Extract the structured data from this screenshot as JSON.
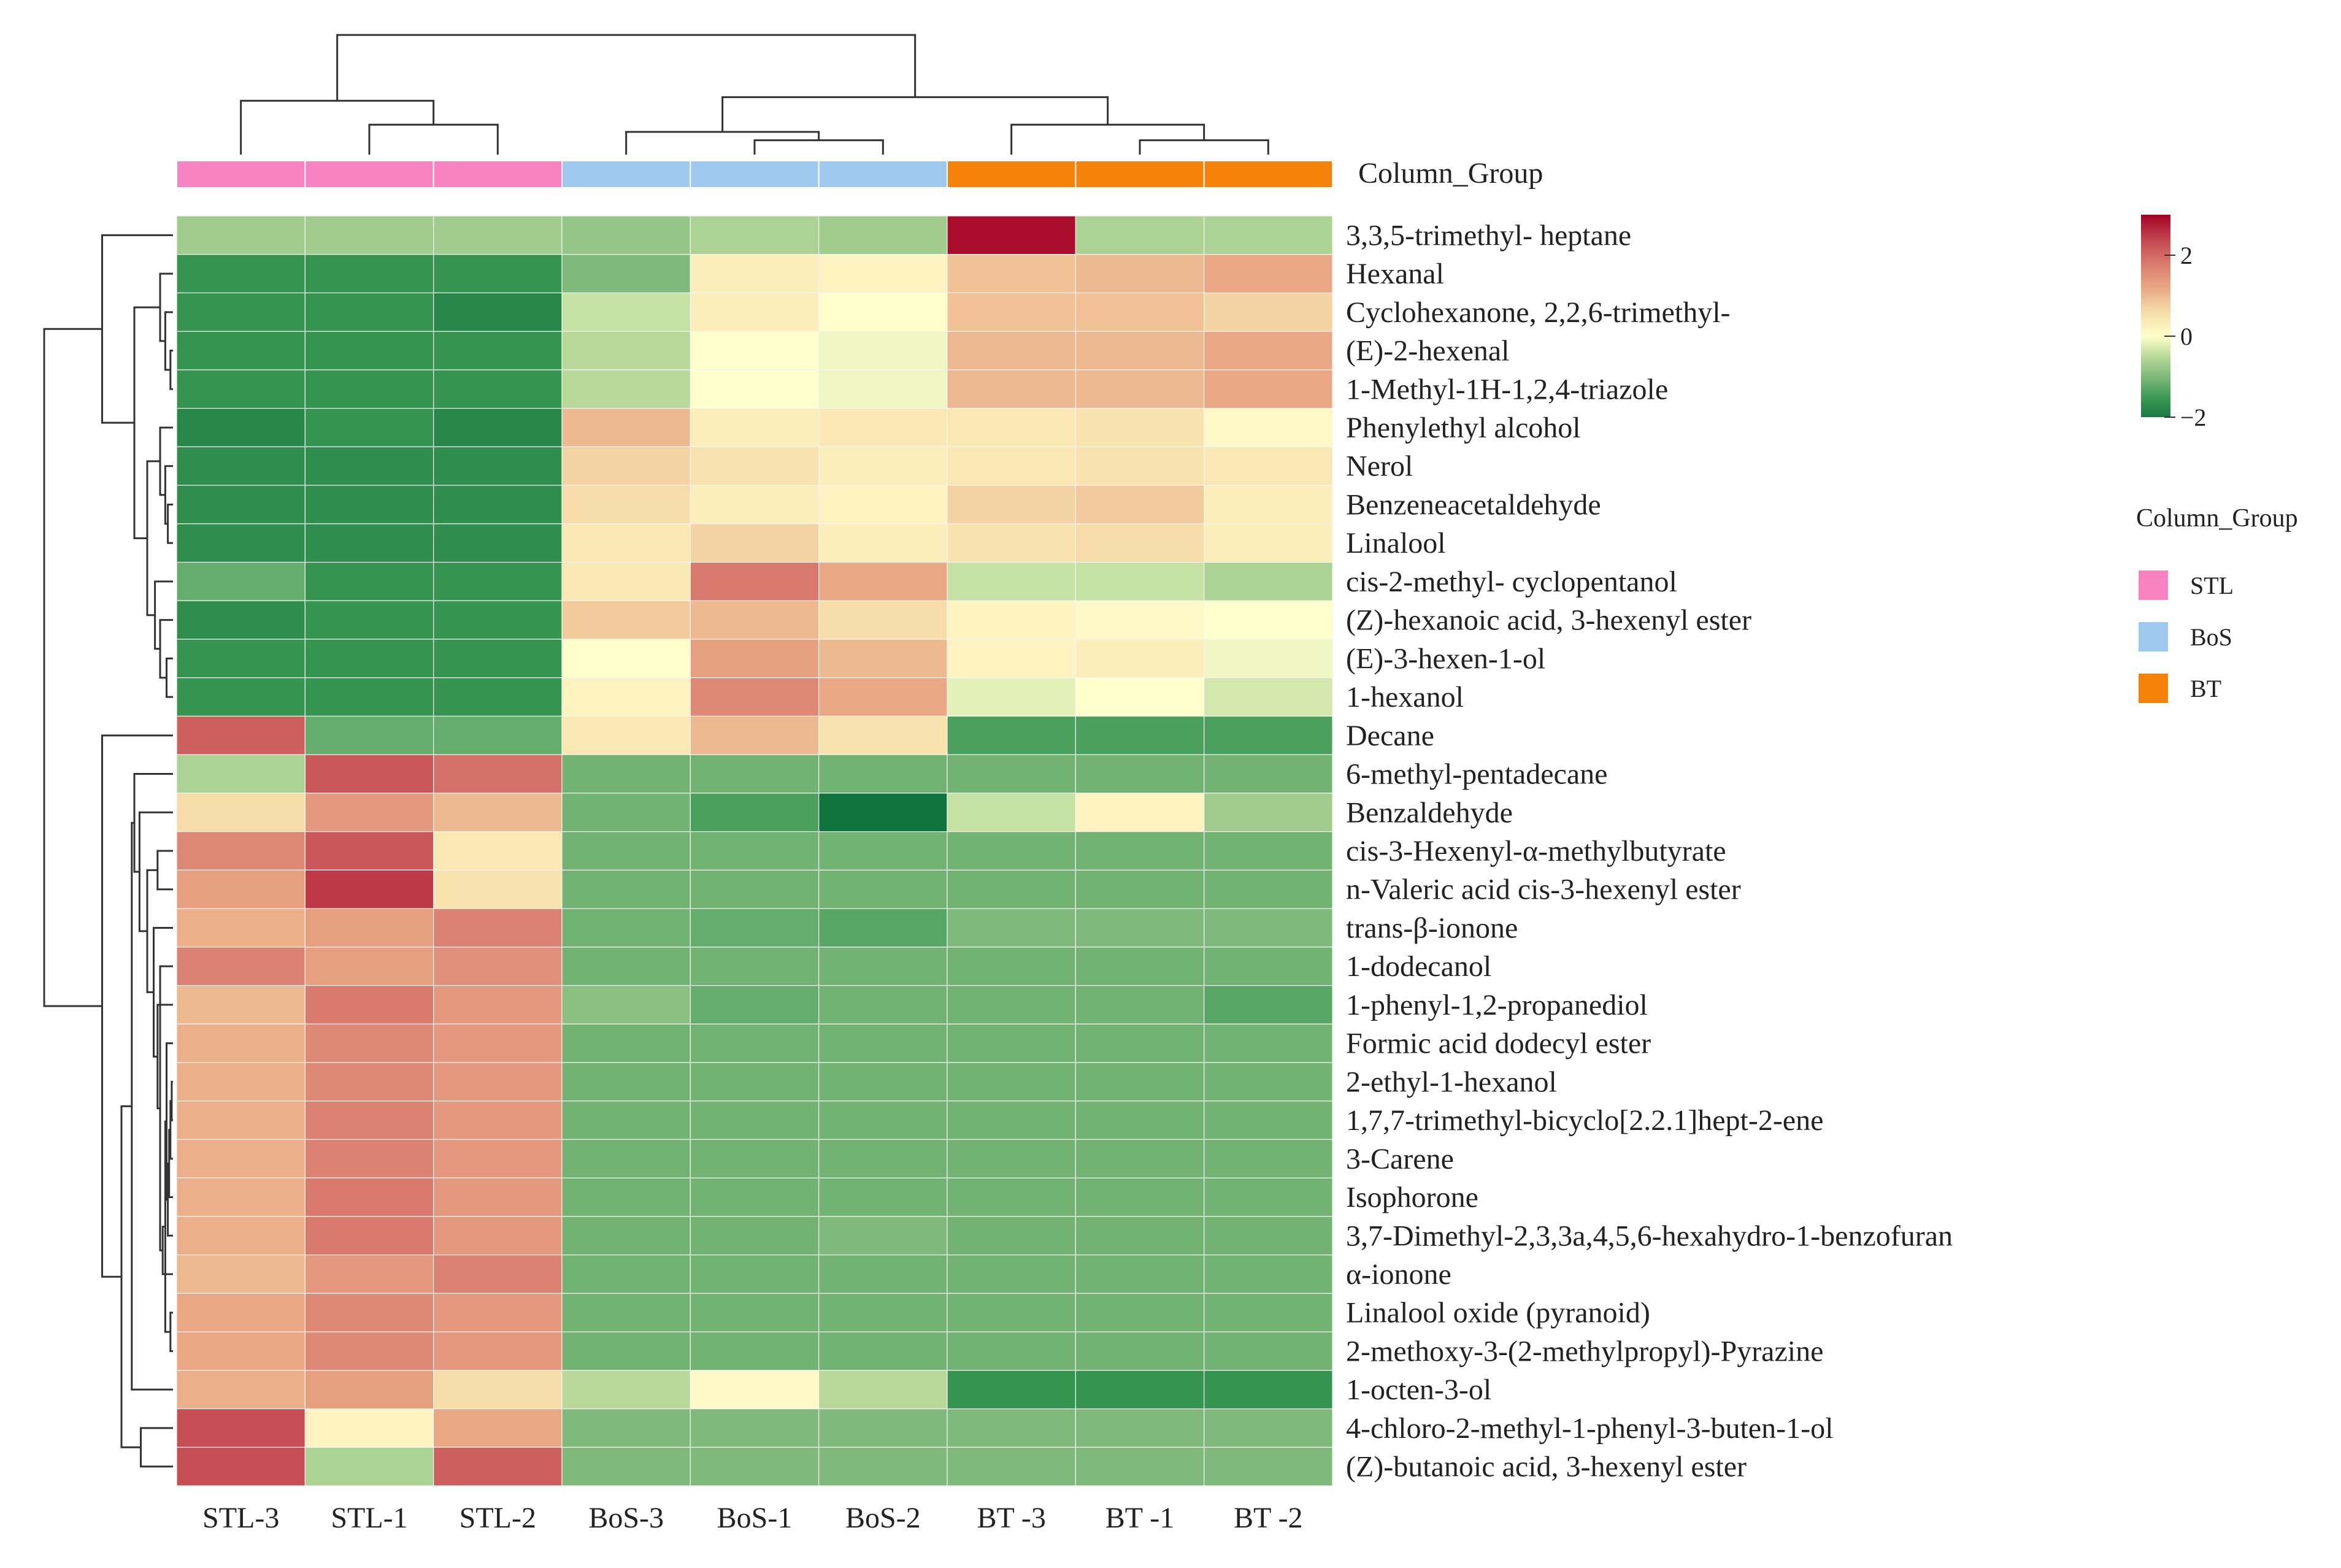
{
  "chart_data": {
    "type": "heatmap",
    "title": "",
    "columns": [
      "STL-3",
      "STL-1",
      "STL-2",
      "BoS-3",
      "BoS-1",
      "BoS-2",
      "BT -3",
      "BT -1",
      "BT -2"
    ],
    "column_groups": [
      "STL",
      "STL",
      "STL",
      "BoS",
      "BoS",
      "BoS",
      "BT",
      "BT",
      "BT"
    ],
    "column_group_title": "Column_Group",
    "groups": [
      {
        "name": "STL",
        "color": "#F783C2"
      },
      {
        "name": "BoS",
        "color": "#9FC8EF"
      },
      {
        "name": "BT",
        "color": "#F5820A"
      }
    ],
    "rows": [
      "3,3,5-trimethyl- heptane",
      "Hexanal",
      "Cyclohexanone, 2,2,6-trimethyl-",
      "(E)-2-hexenal",
      "1-Methyl-1H-1,2,4-triazole",
      "Phenylethyl alcohol",
      "Nerol",
      "Benzeneacetaldehyde",
      "Linalool",
      "cis-2-methyl- cyclopentanol",
      "(Z)-hexanoic acid, 3-hexenyl ester",
      "(E)-3-hexen-1-ol",
      "1-hexanol",
      "Decane",
      "6-methyl-pentadecane",
      "Benzaldehyde",
      "cis-3-Hexenyl-α-methylbutyrate",
      "n-Valeric acid cis-3-hexenyl ester",
      "trans-β-ionone",
      "1-dodecanol",
      "1-phenyl-1,2-propanediol",
      "Formic acid dodecyl ester",
      "2-ethyl-1-hexanol",
      "1,7,7-trimethyl-bicyclo[2.2.1]hept-2-ene",
      "3-Carene",
      "Isophorone",
      "3,7-Dimethyl-2,3,3a,4,5,6-hexahydro-1-benzofuran",
      "α-ionone",
      "Linalool oxide (pyranoid)",
      "2-methoxy-3-(2-methylpropyl)-Pyrazine",
      "1-octen-3-ol",
      "4-chloro-2-methyl-1-phenyl-3-buten-1-ol",
      "(Z)-butanoic acid, 3-hexenyl ester"
    ],
    "values": [
      [
        -0.7,
        -0.7,
        -0.7,
        -0.8,
        -0.6,
        -0.7,
        2.9,
        -0.6,
        -0.6
      ],
      [
        -1.6,
        -1.6,
        -1.6,
        -1.0,
        0.3,
        0.2,
        0.9,
        1.0,
        1.2
      ],
      [
        -1.6,
        -1.6,
        -1.8,
        -0.4,
        0.3,
        0.0,
        0.9,
        0.9,
        0.7
      ],
      [
        -1.6,
        -1.6,
        -1.6,
        -0.5,
        0.0,
        -0.1,
        1.0,
        1.0,
        1.2
      ],
      [
        -1.6,
        -1.6,
        -1.6,
        -0.5,
        0.0,
        -0.1,
        1.0,
        1.0,
        1.2
      ],
      [
        -1.8,
        -1.6,
        -1.8,
        1.0,
        0.3,
        0.4,
        0.4,
        0.5,
        0.1
      ],
      [
        -1.7,
        -1.7,
        -1.7,
        0.7,
        0.5,
        0.3,
        0.4,
        0.5,
        0.4
      ],
      [
        -1.7,
        -1.7,
        -1.7,
        0.6,
        0.3,
        0.2,
        0.7,
        0.8,
        0.3
      ],
      [
        -1.7,
        -1.7,
        -1.7,
        0.4,
        0.7,
        0.3,
        0.5,
        0.6,
        0.3
      ],
      [
        -1.2,
        -1.6,
        -1.6,
        0.4,
        1.8,
        1.2,
        -0.4,
        -0.4,
        -0.6
      ],
      [
        -1.7,
        -1.6,
        -1.6,
        0.8,
        1.0,
        0.6,
        0.2,
        0.1,
        0.0
      ],
      [
        -1.6,
        -1.6,
        -1.6,
        0.0,
        1.3,
        1.0,
        0.2,
        0.3,
        -0.1
      ],
      [
        -1.6,
        -1.6,
        -1.6,
        0.2,
        1.6,
        1.2,
        -0.2,
        0.0,
        -0.3
      ],
      [
        2.1,
        -1.2,
        -1.2,
        0.4,
        1.0,
        0.5,
        -1.4,
        -1.4,
        -1.4
      ],
      [
        -0.6,
        2.2,
        1.9,
        -1.1,
        -1.1,
        -1.1,
        -1.1,
        -1.1,
        -1.1
      ],
      [
        0.6,
        1.4,
        1.0,
        -1.1,
        -1.4,
        -2.1,
        -0.4,
        0.2,
        -0.7
      ],
      [
        1.6,
        2.2,
        0.4,
        -1.1,
        -1.1,
        -1.1,
        -1.1,
        -1.1,
        -1.1
      ],
      [
        1.3,
        2.5,
        0.5,
        -1.1,
        -1.1,
        -1.1,
        -1.1,
        -1.1,
        -1.1
      ],
      [
        1.1,
        1.3,
        1.7,
        -1.1,
        -1.2,
        -1.3,
        -1.0,
        -1.0,
        -1.0
      ],
      [
        1.7,
        1.3,
        1.5,
        -1.1,
        -1.1,
        -1.1,
        -1.1,
        -1.1,
        -1.1
      ],
      [
        1.0,
        1.8,
        1.4,
        -0.9,
        -1.2,
        -1.1,
        -1.1,
        -1.1,
        -1.3
      ],
      [
        1.1,
        1.6,
        1.4,
        -1.1,
        -1.1,
        -1.1,
        -1.1,
        -1.1,
        -1.1
      ],
      [
        1.1,
        1.6,
        1.4,
        -1.1,
        -1.1,
        -1.1,
        -1.1,
        -1.1,
        -1.1
      ],
      [
        1.1,
        1.7,
        1.4,
        -1.1,
        -1.1,
        -1.1,
        -1.1,
        -1.1,
        -1.1
      ],
      [
        1.1,
        1.7,
        1.4,
        -1.1,
        -1.1,
        -1.1,
        -1.1,
        -1.1,
        -1.1
      ],
      [
        1.1,
        1.8,
        1.4,
        -1.1,
        -1.1,
        -1.1,
        -1.1,
        -1.1,
        -1.1
      ],
      [
        1.1,
        1.8,
        1.4,
        -1.1,
        -1.1,
        -1.0,
        -1.1,
        -1.1,
        -1.1
      ],
      [
        1.0,
        1.4,
        1.7,
        -1.1,
        -1.1,
        -1.1,
        -1.1,
        -1.1,
        -1.1
      ],
      [
        1.2,
        1.6,
        1.4,
        -1.1,
        -1.1,
        -1.1,
        -1.1,
        -1.1,
        -1.1
      ],
      [
        1.2,
        1.6,
        1.4,
        -1.1,
        -1.1,
        -1.1,
        -1.1,
        -1.1,
        -1.1
      ],
      [
        1.1,
        1.3,
        0.6,
        -0.5,
        0.1,
        -0.5,
        -1.6,
        -1.6,
        -1.6
      ],
      [
        2.3,
        0.2,
        1.2,
        -1.0,
        -1.0,
        -1.0,
        -1.0,
        -1.0,
        -1.0
      ],
      [
        2.3,
        -0.6,
        2.1,
        -1.0,
        -1.0,
        -1.0,
        -1.0,
        -1.0,
        -1.0
      ]
    ],
    "color_scale": {
      "min": -2,
      "max": 3,
      "stops": [
        {
          "value": -2.3,
          "color": "#006837"
        },
        {
          "value": -1.5,
          "color": "#3E9A55"
        },
        {
          "value": -1.0,
          "color": "#7FB97B"
        },
        {
          "value": -0.5,
          "color": "#B8D99A"
        },
        {
          "value": 0.0,
          "color": "#FFFFCC"
        },
        {
          "value": 0.6,
          "color": "#F6DCA8"
        },
        {
          "value": 1.2,
          "color": "#E9A784"
        },
        {
          "value": 1.8,
          "color": "#D97A6E"
        },
        {
          "value": 2.4,
          "color": "#C2454F"
        },
        {
          "value": 3.0,
          "color": "#A50026"
        }
      ],
      "ticks": [
        "2",
        "0",
        "−2"
      ],
      "tick_values": [
        2,
        0,
        -2
      ]
    },
    "column_dendrogram": [
      {
        "a": 1,
        "b": 2,
        "h": 0.25
      },
      {
        "a": 0,
        "b": 9,
        "h": 0.45
      },
      {
        "a": 4,
        "b": 5,
        "h": 0.12
      },
      {
        "a": 3,
        "b": 11,
        "h": 0.19
      },
      {
        "a": 7,
        "b": 8,
        "h": 0.12
      },
      {
        "a": 6,
        "b": 13,
        "h": 0.25
      },
      {
        "a": 12,
        "b": 14,
        "h": 0.48
      },
      {
        "a": 10,
        "b": 15,
        "h": 1.0
      }
    ],
    "row_dendrogram": [
      {
        "a": 3,
        "b": 4,
        "h": 0.02
      },
      {
        "a": 2,
        "b": 33,
        "h": 0.06
      },
      {
        "a": 1,
        "b": 34,
        "h": 0.1
      },
      {
        "a": 7,
        "b": 8,
        "h": 0.04
      },
      {
        "a": 6,
        "b": 36,
        "h": 0.06
      },
      {
        "a": 5,
        "b": 37,
        "h": 0.1
      },
      {
        "a": 11,
        "b": 12,
        "h": 0.05
      },
      {
        "a": 10,
        "b": 39,
        "h": 0.1
      },
      {
        "a": 9,
        "b": 40,
        "h": 0.14
      },
      {
        "a": 38,
        "b": 41,
        "h": 0.2
      },
      {
        "a": 35,
        "b": 42,
        "h": 0.3
      },
      {
        "a": 0,
        "b": 43,
        "h": 0.55
      },
      {
        "a": 22,
        "b": 23,
        "h": 0.01
      },
      {
        "a": 24,
        "b": 45,
        "h": 0.02
      },
      {
        "a": 25,
        "b": 46,
        "h": 0.03
      },
      {
        "a": 26,
        "b": 47,
        "h": 0.04
      },
      {
        "a": 21,
        "b": 48,
        "h": 0.05
      },
      {
        "a": 28,
        "b": 29,
        "h": 0.02
      },
      {
        "a": 49,
        "b": 50,
        "h": 0.06
      },
      {
        "a": 27,
        "b": 51,
        "h": 0.08
      },
      {
        "a": 19,
        "b": 52,
        "h": 0.1
      },
      {
        "a": 20,
        "b": 53,
        "h": 0.12
      },
      {
        "a": 18,
        "b": 54,
        "h": 0.15
      },
      {
        "a": 16,
        "b": 17,
        "h": 0.12
      },
      {
        "a": 55,
        "b": 56,
        "h": 0.2
      },
      {
        "a": 15,
        "b": 57,
        "h": 0.26
      },
      {
        "a": 14,
        "b": 58,
        "h": 0.3
      },
      {
        "a": 59,
        "b": 30,
        "h": 0.32
      },
      {
        "a": 31,
        "b": 32,
        "h": 0.25
      },
      {
        "a": 60,
        "b": 61,
        "h": 0.4
      },
      {
        "a": 13,
        "b": 62,
        "h": 0.55
      },
      {
        "a": 44,
        "b": 63,
        "h": 1.0
      }
    ]
  }
}
